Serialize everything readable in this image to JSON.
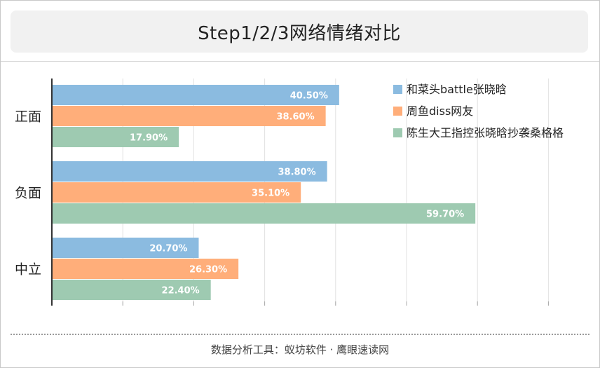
{
  "chart_data": {
    "type": "bar",
    "orientation": "horizontal",
    "title": "Step1/2/3网络情绪对比",
    "categories": [
      "正面",
      "负面",
      "中立"
    ],
    "series": [
      {
        "name": "和菜头battle张晓晗",
        "color": "#8bbbe0",
        "values": [
          40.5,
          38.8,
          20.7
        ],
        "labels": [
          "40.50%",
          "38.80%",
          "20.70%"
        ]
      },
      {
        "name": "周鱼diss网友",
        "color": "#ffae7a",
        "values": [
          38.6,
          35.1,
          26.3
        ],
        "labels": [
          "38.60%",
          "35.10%",
          "26.30%"
        ]
      },
      {
        "name": "陈生大王指控张晓晗抄袭桑格格",
        "color": "#9ecab1",
        "values": [
          17.9,
          59.7,
          22.4
        ],
        "labels": [
          "17.90%",
          "59.70%",
          "22.40%"
        ]
      }
    ],
    "xlim": [
      0,
      70
    ],
    "grid": true,
    "legend_position": "top-right",
    "value_labels": "inside-end"
  },
  "footer": {
    "text": "数据分析工具：蚁坊软件 · 鹰眼速读网"
  }
}
